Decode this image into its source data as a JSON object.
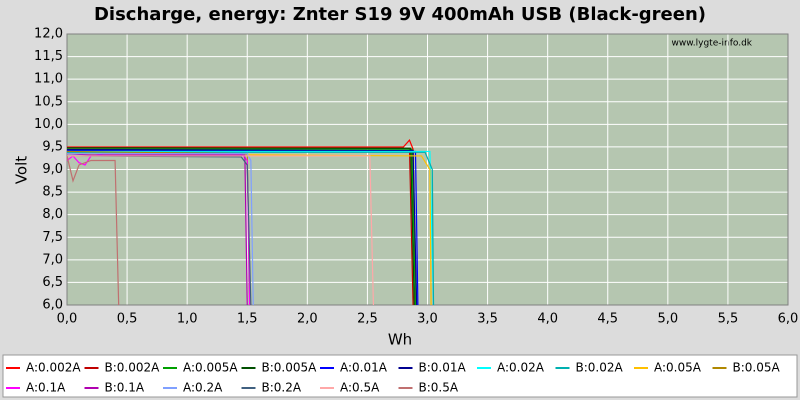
{
  "chart_data": {
    "type": "line",
    "title": "Discharge, energy: Znter S19 9V 400mAh USB (Black-green)",
    "x_label": "Wh",
    "y_label": "Volt",
    "watermark": "www.lygte-info.dk",
    "xlim": [
      0,
      6
    ],
    "ylim": [
      6,
      12
    ],
    "xticks": [
      {
        "value": 0,
        "label": "0,0"
      },
      {
        "value": 0.5,
        "label": "0,5"
      },
      {
        "value": 1,
        "label": "1,0"
      },
      {
        "value": 1.5,
        "label": "1,5"
      },
      {
        "value": 2,
        "label": "2,0"
      },
      {
        "value": 2.5,
        "label": "2,5"
      },
      {
        "value": 3,
        "label": "3,0"
      },
      {
        "value": 3.5,
        "label": "3,5"
      },
      {
        "value": 4,
        "label": "4,0"
      },
      {
        "value": 4.5,
        "label": "4,5"
      },
      {
        "value": 5,
        "label": "5,0"
      },
      {
        "value": 5.5,
        "label": "5,5"
      },
      {
        "value": 6,
        "label": "6,0"
      }
    ],
    "yticks": [
      {
        "value": 6,
        "label": "6,0"
      },
      {
        "value": 6.5,
        "label": "6,5"
      },
      {
        "value": 7,
        "label": "7,0"
      },
      {
        "value": 7.5,
        "label": "7,5"
      },
      {
        "value": 8,
        "label": "8,0"
      },
      {
        "value": 8.5,
        "label": "8,5"
      },
      {
        "value": 9,
        "label": "9,0"
      },
      {
        "value": 9.5,
        "label": "9,5"
      },
      {
        "value": 10,
        "label": "10,0"
      },
      {
        "value": 10.5,
        "label": "10,5"
      },
      {
        "value": 11,
        "label": "11,0"
      },
      {
        "value": 11.5,
        "label": "11,5"
      },
      {
        "value": 12,
        "label": "12,0"
      }
    ],
    "grid": true,
    "series": [
      {
        "name": "A:0.002A",
        "color": "#ff0000",
        "x": [
          0,
          2.8,
          2.85,
          2.88,
          2.9
        ],
        "values": [
          9.5,
          9.5,
          9.65,
          9.45,
          6.0
        ]
      },
      {
        "name": "B:0.002A",
        "color": "#c00000",
        "x": [
          0,
          2.85,
          2.88
        ],
        "values": [
          9.48,
          9.47,
          6.0
        ]
      },
      {
        "name": "A:0.005A",
        "color": "#00a000",
        "x": [
          0,
          2.87,
          2.9
        ],
        "values": [
          9.45,
          9.45,
          6.0
        ]
      },
      {
        "name": "B:0.005A",
        "color": "#005000",
        "x": [
          0,
          2.86,
          2.89
        ],
        "values": [
          9.48,
          9.47,
          6.0
        ]
      },
      {
        "name": "A:0.01A",
        "color": "#0000ff",
        "x": [
          0,
          2.9,
          2.92
        ],
        "values": [
          9.42,
          9.4,
          6.0
        ]
      },
      {
        "name": "B:0.01A",
        "color": "#000090",
        "x": [
          0,
          2.88,
          2.91
        ],
        "values": [
          9.44,
          9.42,
          6.0
        ]
      },
      {
        "name": "A:0.02A",
        "color": "#00ffff",
        "x": [
          0,
          2.95,
          3.02,
          3.05
        ],
        "values": [
          9.4,
          9.4,
          9.4,
          6.0
        ]
      },
      {
        "name": "B:0.02A",
        "color": "#00b0b0",
        "x": [
          0,
          2.98,
          3.04,
          3.05
        ],
        "values": [
          9.38,
          9.38,
          9.0,
          6.0
        ]
      },
      {
        "name": "A:0.05A",
        "color": "#ffc000",
        "x": [
          0,
          2.95,
          3.02,
          3.03
        ],
        "values": [
          9.35,
          9.3,
          9.0,
          6.0
        ]
      },
      {
        "name": "B:0.05A",
        "color": "#b08800",
        "x": [
          0,
          1.5,
          1.52
        ],
        "values": [
          9.4,
          9.35,
          6.0
        ]
      },
      {
        "name": "A:0.1A",
        "color": "#ff00ff",
        "x": [
          0,
          0.05,
          0.1,
          0.15,
          0.2,
          0.3,
          1.45,
          1.5,
          1.52
        ],
        "values": [
          9.2,
          9.3,
          9.15,
          9.1,
          9.3,
          9.35,
          9.35,
          9.2,
          6.0
        ]
      },
      {
        "name": "B:0.1A",
        "color": "#b000b0",
        "x": [
          0,
          0.2,
          1.48,
          1.5
        ],
        "values": [
          9.35,
          9.32,
          9.32,
          6.0
        ]
      },
      {
        "name": "A:0.2A",
        "color": "#80a0ff",
        "x": [
          0,
          1.5,
          1.53,
          1.55
        ],
        "values": [
          9.35,
          9.35,
          9.2,
          6.0
        ]
      },
      {
        "name": "B:0.2A",
        "color": "#406080",
        "x": [
          0,
          1.45,
          1.5,
          1.53
        ],
        "values": [
          9.3,
          9.28,
          9.1,
          6.0
        ]
      },
      {
        "name": "A:0.5A",
        "color": "#ffa8a8",
        "x": [
          0,
          2.52,
          2.55
        ],
        "values": [
          9.3,
          9.3,
          6.0
        ]
      },
      {
        "name": "B:0.5A",
        "color": "#c07070",
        "x": [
          0,
          0.05,
          0.1,
          0.2,
          0.4,
          0.43
        ],
        "values": [
          9.3,
          8.75,
          9.1,
          9.2,
          9.2,
          6.0
        ]
      }
    ]
  }
}
